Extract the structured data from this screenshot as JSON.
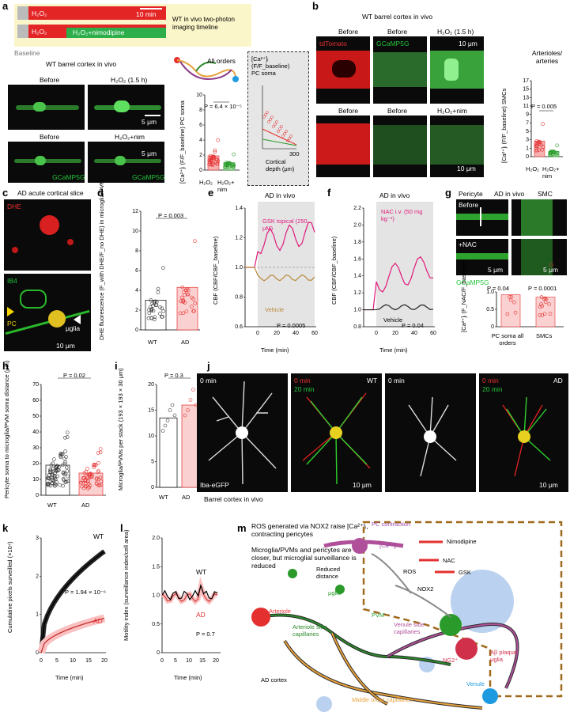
{
  "panels": {
    "a": "a",
    "b": "b",
    "c": "c",
    "d": "d",
    "e": "e",
    "f": "f",
    "g": "g",
    "h": "h",
    "i": "i",
    "j": "j",
    "k": "k",
    "l": "l",
    "m": "m"
  },
  "a": {
    "timeline_label": "WT in vivo two-photon imaging timeline",
    "bar1": "H₂O₂",
    "bar2a": "H₂O₂",
    "bar2b": "H₂O₂+nimodipine",
    "scale": "10 min",
    "baseline": "Baseline",
    "title": "WT barrel cortex in vivo",
    "before": "Before",
    "h2o2": "H₂O₂ (1.5 h)",
    "before2": "Before",
    "h2o2nim": "H₂O₂+nim",
    "gcamp": "GCaMP5G",
    "scale5": "5 μm",
    "all_orders": "All orders",
    "ylabel": "[Ca²⁺]ᵢ (F/F_baseline) PC soma",
    "pval": "P = 6.4 × 10⁻⁵",
    "x1": "H₂O₂",
    "x2": "H₂O₂+ nim",
    "inset_title": "[Ca²⁺]ᵢ (F/F_baseline) PC soma",
    "inset_x": "Cortical depth (μm)",
    "inset_tick": "300",
    "yticks": [
      "0",
      "2",
      "4",
      "6",
      "8",
      "10"
    ]
  },
  "b": {
    "title": "WT barrel cortex in vivo",
    "before": "Before",
    "before2": "Before",
    "h2o2": "H₂O₂ (1.5 h)",
    "h2o2nim": "H₂O₂+nim",
    "tdtomato": "tdTomato",
    "gcamp": "GCaMP5G",
    "scale": "10 μm",
    "side": "Arterioles/ arteries",
    "ylabel": "[Ca²⁺]ᵢ (F/F_baseline) SMCs",
    "pval": "P = 0.005",
    "x1": "H₂O₂",
    "x2": "H₂O₂+ nim",
    "yticks": [
      "0",
      "1",
      "3",
      "5",
      "7",
      "9",
      "11",
      "13",
      "15",
      "17"
    ]
  },
  "c": {
    "title": "AD acute cortical slice",
    "dhe": "DHE",
    "ib4": "IB4",
    "pc": "PC",
    "uglia": "μglia",
    "scale": "10 μm"
  },
  "d": {
    "ylabel": "DHE fluorescence (F_with DHE/F_no DHE) in microglia/PVM",
    "pval": "P = 0.003",
    "x": [
      "WT",
      "AD"
    ],
    "yticks": [
      "0",
      "2",
      "4",
      "6",
      "8",
      "10",
      "12"
    ],
    "wt_mean": 3.0,
    "ad_mean": 4.3
  },
  "e": {
    "title": "AD in vivo",
    "ylabel": "CBF (CBF/CBF_baseline)",
    "xlabel": "Time (min)",
    "gsk": "GSK topical (250 μM)",
    "vehicle": "Vehicle",
    "pval": "P = 0.0005",
    "yticks": [
      "0.6",
      "0.8",
      "1.0",
      "1.2",
      "1.4"
    ],
    "xticks": [
      "0",
      "20",
      "40",
      "60"
    ]
  },
  "f": {
    "title": "AD in vivo",
    "ylabel": "CBF (CBF/CBF_baseline)",
    "xlabel": "Time (min)",
    "nac": "NAC i.v. (50 mg kg⁻¹)",
    "vehicle": "Vehicle",
    "pval": "P = 0.04",
    "yticks": [
      "0.8",
      "1.0",
      "1.2",
      "1.4",
      "1.6",
      "1.8",
      "2.0",
      "2.2"
    ],
    "xticks": [
      "0",
      "20",
      "40",
      "60"
    ]
  },
  "g": {
    "title": "AD in vivo",
    "pericyte": "Pericyte",
    "smc": "SMC",
    "before": "Before",
    "nac": "+NAC",
    "gcamp": "GCaMP5G",
    "scale": "5 μm",
    "ylabel": "[Ca²⁺]ᵢ (F_NAC/F_baseline)",
    "p1": "P = 0.04",
    "p2": "P = 0.0001",
    "x1": "PC soma all orders",
    "x2": "SMCs",
    "yticks": [
      "0",
      "0.5",
      "1.0"
    ]
  },
  "h": {
    "ylabel": "Pericyte soma to microglia/PVM soma distance (μm)",
    "pval": "P = 0.02",
    "x": [
      "WT",
      "AD"
    ],
    "yticks": [
      "0",
      "10",
      "20",
      "30",
      "40",
      "50",
      "60",
      "70"
    ]
  },
  "i": {
    "ylabel": "Microglia/PVMs per stack (193 × 193 × 30 μm)",
    "pval": "P = 0.3",
    "x": [
      "WT",
      "AD"
    ],
    "yticks": [
      "0",
      "5",
      "10",
      "15",
      "20"
    ],
    "means": [
      13.5,
      16.0
    ]
  },
  "j": {
    "t0": "0 min",
    "t20": "20 min",
    "wt": "WT",
    "ad": "AD",
    "iba": "Iba-eGFP",
    "caption": "Barrel cortex in vivo",
    "scale": "10 μm"
  },
  "k": {
    "ylabel": "Cumulative pixels surveilled (×10⁴)",
    "xlabel": "Time (min)",
    "wt": "WT",
    "ad": "AD",
    "pval": "P = 1.94 × 10⁻⁶",
    "yticks": [
      "0",
      "1",
      "2",
      "3"
    ],
    "xticks": [
      "0",
      "5",
      "10",
      "15",
      "20"
    ]
  },
  "l": {
    "ylabel": "Motility index (surveillance index/cell area)",
    "xlabel": "Time (min)",
    "wt": "WT",
    "ad": "AD",
    "pval": "P = 0.7",
    "yticks": [
      "0",
      "0.5",
      "1.0",
      "1.5",
      "2.0"
    ],
    "xticks": [
      "0",
      "5",
      "10",
      "15",
      "20"
    ]
  },
  "m": {
    "bullet1": "ROS generated via NOX2 raise [Ca²⁺]ᵢ, contracting pericytes",
    "bullet2": "Microglia/PVMs and pericytes are closer, but microglial surveillance is reduced",
    "pc_contraction": "PC contraction",
    "reduced": "Reduced distance",
    "ca": "[Ca²⁺]ᵢ",
    "nimodipine": "Nimodipine",
    "nac": "NAC",
    "gsk": "GSK",
    "ros": "ROS",
    "nox2": "NOX2",
    "uglia": "μglia",
    "pvm": "PVM",
    "ng2": "NG2⁺",
    "abeta": "Aβ plaque μglia",
    "arteriole": "Arteriole",
    "art_cap": "Arteriole side capillaries",
    "ven_cap": "Venule side capillaries",
    "venule": "Venule",
    "ad_cortex": "AD cortex",
    "mid_cap": "Middle order capillaries"
  }
}
